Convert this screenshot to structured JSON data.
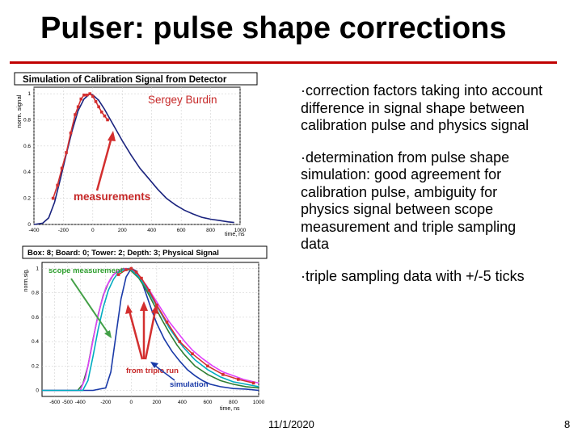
{
  "slide": {
    "title": "Pulser: pulse shape corrections",
    "date": "11/1/2020",
    "page_number": "8",
    "accent_color": "#c00000"
  },
  "bullets": [
    "correction factors taking into account difference in signal shape between calibration pulse and physics signal",
    "determination from pulse shape simulation: good agreement for calibration pulse, ambiguity for physics signal between scope measurement and triple sampling data",
    "triple sampling data with +/-5 ticks"
  ],
  "chart_data": [
    {
      "type": "line",
      "title": "Simulation of Calibration Signal from Detector",
      "ylabel": "norm. signal",
      "xlabel": "time, ns",
      "xlim": [
        -400,
        1000
      ],
      "ylim": [
        0,
        1.05
      ],
      "x_ticks": [
        "-400",
        "-200",
        "0",
        "200",
        "400",
        "600",
        "800",
        "1000"
      ],
      "y_ticks": [
        "0",
        "0.2",
        "0.4",
        "0.6",
        "0.8",
        "1"
      ],
      "annotations": [
        "Sergey Burdin",
        "measurements"
      ],
      "series": [
        {
          "color": "#1a237e",
          "x": [
            -400,
            -340,
            -300,
            -260,
            -220,
            -180,
            -140,
            -100,
            -60,
            -20,
            0,
            40,
            80,
            120,
            160,
            200,
            260,
            320,
            380,
            440,
            500,
            560,
            620,
            680,
            740,
            800,
            860,
            920,
            960
          ],
          "y": [
            0,
            0.01,
            0.05,
            0.17,
            0.35,
            0.54,
            0.72,
            0.87,
            0.96,
            1.0,
            0.99,
            0.95,
            0.88,
            0.8,
            0.72,
            0.64,
            0.53,
            0.43,
            0.35,
            0.27,
            0.2,
            0.15,
            0.11,
            0.08,
            0.055,
            0.04,
            0.03,
            0.02,
            0.015
          ]
        },
        {
          "color": "#d32f2f",
          "x": [
            -270,
            -240,
            -210,
            -180,
            -150,
            -120,
            -100,
            -80,
            -60,
            -40,
            -20,
            0,
            20,
            40,
            60,
            80,
            100
          ],
          "y": [
            0.2,
            0.3,
            0.43,
            0.55,
            0.7,
            0.84,
            0.9,
            0.96,
            0.99,
            0.99,
            1.0,
            0.98,
            0.94,
            0.9,
            0.86,
            0.83,
            0.8
          ]
        }
      ]
    },
    {
      "type": "line",
      "title": "Box: 8; Board: 0; Tower: 2; Depth: 3; Physical Signal",
      "ylabel": "norm.sig.",
      "xlabel": "time, ns",
      "xlim": [
        -700,
        1000
      ],
      "ylim": [
        -0.05,
        1.05
      ],
      "x_ticks": [
        "-600",
        "-500",
        "-400",
        "-200",
        "0",
        "200",
        "400",
        "600",
        "800",
        "1000"
      ],
      "y_ticks": [
        "0",
        "0.2",
        "0.4",
        "0.6",
        "0.8",
        "1"
      ],
      "annotations": [
        "scope measurement",
        "from triple run",
        "simulation"
      ],
      "series": [
        {
          "color": "#1a3aa8",
          "x": [
            -700,
            -300,
            -200,
            -160,
            -120,
            -80,
            -40,
            0,
            40,
            80,
            120,
            160,
            200,
            260,
            320,
            380,
            440,
            500,
            560,
            620,
            700,
            800,
            900,
            1000
          ],
          "y": [
            0,
            0,
            0.02,
            0.15,
            0.45,
            0.75,
            0.93,
            1.0,
            0.98,
            0.9,
            0.78,
            0.66,
            0.55,
            0.42,
            0.32,
            0.24,
            0.17,
            0.12,
            0.08,
            0.05,
            0.03,
            0.015,
            0.01,
            0.0
          ]
        },
        {
          "color": "#2e7d32",
          "x": [
            -700,
            -420,
            -380,
            -340,
            -300,
            -260,
            -220,
            -180,
            -140,
            -100,
            -60,
            -20,
            0,
            60,
            120,
            180,
            240,
            300,
            360,
            420,
            500,
            600,
            700,
            800,
            900,
            1000
          ],
          "y": [
            0,
            0,
            0.05,
            0.2,
            0.42,
            0.62,
            0.78,
            0.88,
            0.95,
            0.98,
            1.0,
            0.99,
            0.98,
            0.92,
            0.82,
            0.7,
            0.58,
            0.47,
            0.37,
            0.29,
            0.2,
            0.13,
            0.08,
            0.05,
            0.03,
            0.02
          ]
        },
        {
          "color": "#e040fb",
          "x": [
            -700,
            -400,
            -360,
            -320,
            -280,
            -240,
            -200,
            -160,
            -120,
            -80,
            -40,
            0,
            60,
            120,
            180,
            240,
            300,
            360,
            420,
            480,
            560,
            640,
            720,
            800,
            880,
            960,
            1000
          ],
          "y": [
            0,
            0,
            0.1,
            0.3,
            0.52,
            0.7,
            0.84,
            0.92,
            0.97,
            0.99,
            1.0,
            0.99,
            0.94,
            0.86,
            0.76,
            0.66,
            0.56,
            0.48,
            0.4,
            0.33,
            0.26,
            0.2,
            0.15,
            0.12,
            0.09,
            0.07,
            0.06
          ]
        },
        {
          "color": "#00acc1",
          "x": [
            -700,
            -380,
            -340,
            -300,
            -260,
            -220,
            -180,
            -140,
            -100,
            -60,
            -20,
            0,
            60,
            120,
            180,
            240,
            300,
            360,
            420,
            500,
            600,
            700,
            800,
            900,
            1000
          ],
          "y": [
            0,
            0,
            0.08,
            0.28,
            0.5,
            0.68,
            0.82,
            0.91,
            0.97,
            0.99,
            1.0,
            0.99,
            0.93,
            0.84,
            0.73,
            0.62,
            0.51,
            0.42,
            0.34,
            0.25,
            0.17,
            0.11,
            0.07,
            0.05,
            0.03
          ]
        },
        {
          "color": "#d32f2f",
          "x": [
            -100,
            -40,
            0,
            40,
            80,
            140,
            200,
            280,
            380,
            480,
            600,
            720,
            840,
            960
          ],
          "y": [
            0.95,
            0.99,
            1.0,
            0.97,
            0.92,
            0.82,
            0.7,
            0.56,
            0.4,
            0.3,
            0.2,
            0.13,
            0.09,
            0.06
          ]
        }
      ]
    }
  ]
}
